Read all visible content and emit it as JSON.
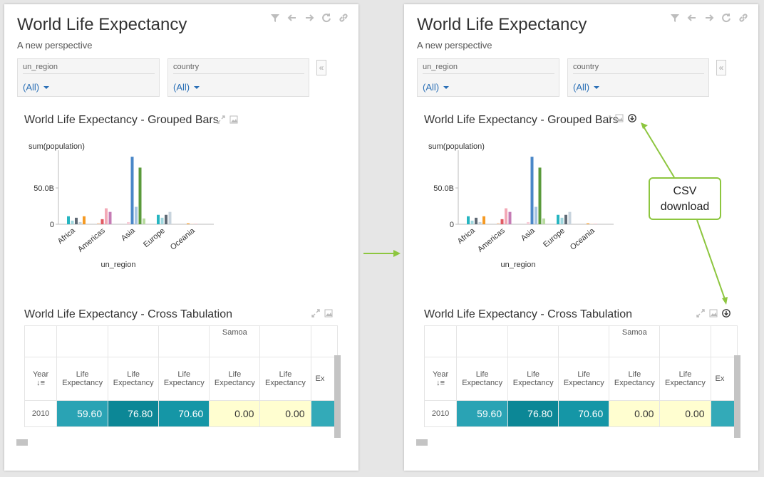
{
  "dashboard": {
    "title": "World Life Expectancy",
    "subtitle": "A new perspective"
  },
  "toolbar": {
    "icons": [
      "filter-icon",
      "back-icon",
      "forward-icon",
      "refresh-icon",
      "link-icon"
    ]
  },
  "filters": [
    {
      "label": "un_region",
      "value": "(All)"
    },
    {
      "label": "country",
      "value": "(All)"
    }
  ],
  "collapse_glyph": "«",
  "grouped_bars": {
    "title": "World Life Expectancy - Grouped Bars"
  },
  "chart_data": {
    "type": "bar",
    "title": "World Life Expectancy - Grouped Bars",
    "ylabel": "sum(population)",
    "xlabel": "un_region",
    "ylim": [
      0,
      100000000000
    ],
    "yticks": [
      {
        "value": 0,
        "label": "0"
      },
      {
        "value": 50000000000,
        "label": "50.0B"
      }
    ],
    "categories": [
      "Africa",
      "Americas",
      "Asia",
      "Europe",
      "Oceania"
    ],
    "groups": [
      {
        "category": "Africa",
        "bars": [
          {
            "value": 11000000000,
            "color": "#26b5c0"
          },
          {
            "value": 5000000000,
            "color": "#9fd6dd"
          },
          {
            "value": 9000000000,
            "color": "#5f6a75"
          },
          {
            "value": 3000000000,
            "color": "#c8d4de"
          },
          {
            "value": 11000000000,
            "color": "#f59a23"
          }
        ]
      },
      {
        "category": "Americas",
        "bars": [
          {
            "value": 2000000000,
            "color": "#f6d7c0"
          },
          {
            "value": 7000000000,
            "color": "#e05a62"
          },
          {
            "value": 22000000000,
            "color": "#f3a9b7"
          },
          {
            "value": 17000000000,
            "color": "#c57bb4"
          }
        ]
      },
      {
        "category": "Asia",
        "bars": [
          {
            "value": 3000000000,
            "color": "#f8cdd8"
          },
          {
            "value": 93000000000,
            "color": "#4a87c8"
          },
          {
            "value": 24000000000,
            "color": "#a8c5e2"
          },
          {
            "value": 78000000000,
            "color": "#5a9a3b"
          },
          {
            "value": 8000000000,
            "color": "#b8dba0"
          }
        ]
      },
      {
        "category": "Europe",
        "bars": [
          {
            "value": 13000000000,
            "color": "#26b5c0"
          },
          {
            "value": 9000000000,
            "color": "#9fd6dd"
          },
          {
            "value": 13000000000,
            "color": "#5f6a75"
          },
          {
            "value": 17000000000,
            "color": "#c8d4de"
          }
        ]
      },
      {
        "category": "Oceania",
        "bars": [
          {
            "value": 1200000000,
            "color": "#f59a23"
          },
          {
            "value": 800000000,
            "color": "#f6d7c0"
          },
          {
            "value": 600000000,
            "color": "#f3a9b7"
          }
        ]
      }
    ]
  },
  "cross_tab": {
    "title": "World Life Expectancy - Cross Tabulation",
    "top_row": [
      "",
      "",
      "",
      "",
      "Samoa",
      "",
      ""
    ],
    "year_header": "Year",
    "measure_header": "Life Expectancy",
    "partial_header": "Ex",
    "row": {
      "year": "2010",
      "values": [
        "59.60",
        "76.80",
        "70.60",
        "0.00",
        "0.00",
        ""
      ],
      "colors": [
        "#2aa3b4",
        "#0c8796",
        "#1596a6",
        "#fffed0",
        "#fffed0",
        "#33aab8"
      ]
    }
  },
  "callout": {
    "line1": "CSV",
    "line2": "download",
    "color": "#8dc63f"
  }
}
